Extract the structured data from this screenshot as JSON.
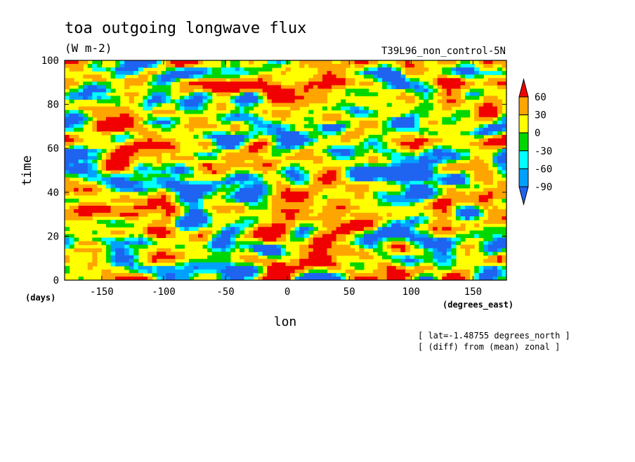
{
  "chart_data": {
    "type": "heatmap",
    "title": "toa outgoing longwave flux",
    "units": "(W m-2)",
    "dataset": "T39L96_non_control-5N",
    "xlabel": "lon",
    "xunits": "(degrees_east)",
    "ylabel": "time",
    "yunits": "(days)",
    "xlim": [
      -180,
      177
    ],
    "ylim": [
      0,
      100
    ],
    "xticks": [
      -150,
      -100,
      -50,
      0,
      50,
      100,
      150
    ],
    "yticks": [
      0,
      20,
      40,
      60,
      80,
      100
    ],
    "colorbar": {
      "labels": [
        "60",
        "30",
        "0",
        "-30",
        "-60",
        "-90"
      ],
      "levels": [
        -90,
        -60,
        -30,
        0,
        30,
        60
      ],
      "colors": [
        "#1e64f0",
        "#00a0ff",
        "#00ffff",
        "#00d700",
        "#ffff00",
        "#ffa500",
        "#f00000"
      ]
    },
    "annotations": [
      "[ lat=-1.48755 degrees_north ]",
      "[ (diff) from (mean) zonal ]"
    ]
  }
}
